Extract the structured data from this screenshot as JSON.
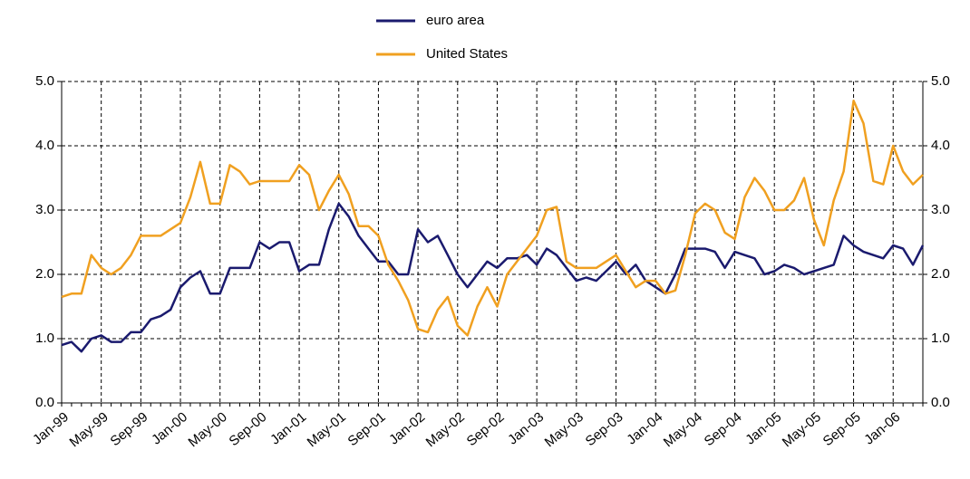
{
  "chart_data": {
    "type": "line",
    "categories": [
      "Jan-99",
      null,
      null,
      null,
      "May-99",
      null,
      null,
      null,
      "Sep-99",
      null,
      null,
      null,
      "Jan-00",
      null,
      null,
      null,
      "May-00",
      null,
      null,
      null,
      "Sep-00",
      null,
      null,
      null,
      "Jan-01",
      null,
      null,
      null,
      "May-01",
      null,
      null,
      null,
      "Sep-01",
      null,
      null,
      null,
      "Jan-02",
      null,
      null,
      null,
      "May-02",
      null,
      null,
      null,
      "Sep-02",
      null,
      null,
      null,
      "Jan-03",
      null,
      null,
      null,
      "May-03",
      null,
      null,
      null,
      "Sep-03",
      null,
      null,
      null,
      "Jan-04",
      null,
      null,
      null,
      "May-04",
      null,
      null,
      null,
      "Sep-04",
      null,
      null,
      null,
      "Jan-05",
      null,
      null,
      null,
      "May-05",
      null,
      null,
      null,
      "Sep-05",
      null,
      null,
      null,
      "Jan-06",
      null,
      null,
      null
    ],
    "series": [
      {
        "name": "euro area",
        "color": "#1a1a6e",
        "values": [
          0.9,
          0.95,
          0.8,
          1.0,
          1.05,
          0.95,
          0.95,
          1.1,
          1.1,
          1.3,
          1.35,
          1.45,
          1.8,
          1.95,
          2.05,
          1.7,
          1.7,
          2.1,
          2.1,
          2.1,
          2.5,
          2.4,
          2.5,
          2.5,
          2.05,
          2.15,
          2.15,
          2.7,
          3.1,
          2.9,
          2.6,
          2.4,
          2.2,
          2.2,
          2.0,
          2.0,
          2.7,
          2.5,
          2.6,
          2.3,
          2.0,
          1.8,
          2.0,
          2.2,
          2.1,
          2.25,
          2.25,
          2.3,
          2.15,
          2.4,
          2.3,
          2.1,
          1.9,
          1.95,
          1.9,
          2.05,
          2.2,
          2.0,
          2.15,
          1.9,
          1.8,
          1.7,
          2.0,
          2.4,
          2.4,
          2.4,
          2.35,
          2.1,
          2.35,
          2.3,
          2.25,
          2.0,
          2.05,
          2.15,
          2.1,
          2.0,
          2.05,
          2.1,
          2.15,
          2.6,
          2.45,
          2.35,
          2.3,
          2.25,
          2.45,
          2.4,
          2.15,
          2.45
        ]
      },
      {
        "name": "United States",
        "color": "#f0a020",
        "values": [
          1.65,
          1.7,
          1.7,
          2.3,
          2.1,
          2.0,
          2.1,
          2.3,
          2.6,
          2.6,
          2.6,
          2.7,
          2.8,
          3.2,
          3.75,
          3.1,
          3.1,
          3.7,
          3.6,
          3.4,
          3.45,
          3.45,
          3.45,
          3.45,
          3.7,
          3.55,
          3.0,
          3.3,
          3.55,
          3.25,
          2.75,
          2.75,
          2.6,
          2.15,
          1.9,
          1.6,
          1.15,
          1.1,
          1.45,
          1.65,
          1.2,
          1.05,
          1.5,
          1.8,
          1.5,
          2.0,
          2.2,
          2.4,
          2.6,
          3.0,
          3.05,
          2.2,
          2.1,
          2.1,
          2.1,
          2.2,
          2.3,
          2.05,
          1.8,
          1.9,
          1.9,
          1.7,
          1.75,
          2.3,
          2.95,
          3.1,
          3.0,
          2.65,
          2.55,
          3.2,
          3.5,
          3.3,
          3.0,
          3.0,
          3.15,
          3.5,
          2.85,
          2.45,
          3.15,
          3.6,
          4.7,
          4.35,
          3.45,
          3.4,
          4.0,
          3.6,
          3.4,
          3.55
        ]
      }
    ],
    "ylim": [
      0,
      5
    ],
    "yticks": [
      {
        "value": 0,
        "label": "0.0"
      },
      {
        "value": 1,
        "label": "1.0"
      },
      {
        "value": 2,
        "label": "2.0"
      },
      {
        "value": 3,
        "label": "3.0"
      },
      {
        "value": 4,
        "label": "4.0"
      },
      {
        "value": 5,
        "label": "5.0"
      }
    ],
    "y2lim": [
      0,
      5
    ],
    "y2ticks": [
      {
        "value": 0,
        "label": "0.0"
      },
      {
        "value": 1,
        "label": "1.0"
      },
      {
        "value": 2,
        "label": "2.0"
      },
      {
        "value": 3,
        "label": "3.0"
      },
      {
        "value": 4,
        "label": "4.0"
      },
      {
        "value": 5,
        "label": "5.0"
      }
    ],
    "grid": true,
    "legend": "top"
  }
}
